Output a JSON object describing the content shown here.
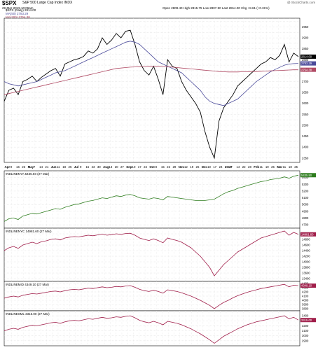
{
  "header": {
    "symbol": "$SPX",
    "name": "S&P 500 Large Cap Index INDX",
    "date": "29-Mar-2019 10:06am",
    "quote": "Open 2809.40  High 2815.75  Low 2807.90  Last 2814.00  Chg +8.61 (+0.31%)",
    "watermark": "@ StockCharts.com",
    "legend": [
      {
        "label": "$SPX (Daily) 2814.00",
        "color": "#000000"
      },
      {
        "label": "MA(50) 2783.29",
        "color": "#4b4b9a"
      },
      {
        "label": "MA(200) 2754.38",
        "color": "#b04a64"
      }
    ]
  },
  "chart_data": [
    {
      "type": "line",
      "panel": "price",
      "series": [
        {
          "name": "$SPX (Daily) 2814.00",
          "color": "#000000",
          "last_label": "2814.00",
          "values": [
            2610,
            2660,
            2670,
            2640,
            2700,
            2710,
            2725,
            2700,
            2720,
            2735,
            2750,
            2760,
            2725,
            2780,
            2790,
            2800,
            2805,
            2815,
            2840,
            2830,
            2850,
            2900,
            2870,
            2890,
            2920,
            2900,
            2930,
            2935,
            2870,
            2790,
            2750,
            2730,
            2770,
            2710,
            2640,
            2800,
            2770,
            2760,
            2700,
            2660,
            2630,
            2600,
            2560,
            2470,
            2400,
            2350,
            2520,
            2580,
            2610,
            2640,
            2680,
            2700,
            2720,
            2740,
            2760,
            2780,
            2790,
            2810,
            2800,
            2820,
            2870,
            2790,
            2830,
            2814
          ]
        },
        {
          "name": "MA(50) 2783.29",
          "color": "#4b4b9a",
          "last_label": "2783.29",
          "values": [
            2700,
            2690,
            2685,
            2680,
            2685,
            2690,
            2695,
            2700,
            2710,
            2720,
            2730,
            2740,
            2745,
            2750,
            2760,
            2770,
            2780,
            2790,
            2800,
            2810,
            2820,
            2830,
            2840,
            2850,
            2860,
            2870,
            2880,
            2885,
            2880,
            2870,
            2850,
            2830,
            2810,
            2790,
            2780,
            2770,
            2760,
            2750,
            2740,
            2720,
            2700,
            2680,
            2660,
            2630,
            2610,
            2600,
            2595,
            2590,
            2600,
            2610,
            2620,
            2640,
            2660,
            2680,
            2700,
            2715,
            2730,
            2745,
            2755,
            2765,
            2775,
            2780,
            2782,
            2783
          ]
        },
        {
          "name": "MA(200) 2754.38",
          "color": "#b04a64",
          "last_label": "2754.38",
          "values": [
            2640,
            2645,
            2650,
            2655,
            2660,
            2665,
            2670,
            2675,
            2680,
            2685,
            2690,
            2695,
            2700,
            2705,
            2710,
            2715,
            2720,
            2725,
            2730,
            2735,
            2740,
            2745,
            2750,
            2755,
            2760,
            2762,
            2764,
            2766,
            2767,
            2768,
            2769,
            2770,
            2770,
            2770,
            2769,
            2768,
            2766,
            2764,
            2762,
            2760,
            2758,
            2756,
            2754,
            2752,
            2750,
            2748,
            2746,
            2745,
            2744,
            2744,
            2744,
            2745,
            2745,
            2746,
            2746,
            2747,
            2748,
            2749,
            2750,
            2751,
            2752,
            2753,
            2754,
            2754
          ]
        }
      ],
      "ylim": [
        2330,
        2990
      ],
      "yticks": [
        2350,
        2375,
        2400,
        2425,
        2450,
        2475,
        2500,
        2525,
        2550,
        2575,
        2600,
        2625,
        2650,
        2675,
        2700,
        2725,
        2750,
        2775,
        2800,
        2825,
        2850,
        2875,
        2900,
        2925,
        2950,
        2975
      ],
      "ytick_labels": [
        "2350",
        "2375",
        "2400",
        "2425",
        "2450",
        "2475",
        "2500",
        "2525",
        "2550",
        "2575",
        "2600",
        "2625",
        "2650",
        "2675",
        "2700",
        "2725",
        "2750",
        "2775",
        "2800",
        "2825",
        "2850",
        "2875",
        "2900",
        "2925",
        "2950",
        "2975"
      ],
      "grid": true
    },
    {
      "type": "line",
      "panel": "indicator",
      "label": "!NDLINENYA 5435.50 (27 Mar)",
      "series": [
        {
          "name": "!NDLINENYA",
          "color": "#2e7d1e",
          "last_label": "5435.50",
          "values": [
            4750,
            4790,
            4800,
            4780,
            4830,
            4850,
            4870,
            4860,
            4880,
            4900,
            4920,
            4940,
            4930,
            4960,
            4980,
            5000,
            5010,
            5030,
            5050,
            5060,
            5080,
            5100,
            5090,
            5110,
            5130,
            5120,
            5140,
            5150,
            5130,
            5100,
            5090,
            5080,
            5100,
            5090,
            5070,
            5120,
            5110,
            5100,
            5090,
            5080,
            5070,
            5060,
            5060,
            5060,
            5070,
            5080,
            5120,
            5160,
            5190,
            5210,
            5240,
            5260,
            5280,
            5300,
            5320,
            5340,
            5350,
            5370,
            5380,
            5390,
            5410,
            5390,
            5420,
            5435
          ]
        }
      ],
      "ylim": [
        4650,
        5500
      ],
      "yticks": [
        4700,
        4800,
        4900,
        5000,
        5100,
        5200,
        5300,
        5400
      ],
      "ytick_labels": [
        "4700",
        "4800",
        "4900",
        "5000",
        "5100",
        "5200",
        "5300",
        "5400"
      ],
      "grid": true
    },
    {
      "type": "line",
      "panel": "indicator",
      "label": "!NDLINENYC 14981.60 (27 Mar)",
      "series": [
        {
          "name": "!NDLINENYC",
          "color": "#a01e4a",
          "last_label": "14981.60",
          "values": [
            14400,
            14500,
            14550,
            14480,
            14600,
            14650,
            14700,
            14650,
            14720,
            14750,
            14800,
            14820,
            14780,
            14850,
            14880,
            14900,
            14890,
            14920,
            14950,
            14930,
            14960,
            14990,
            14950,
            14970,
            15000,
            14980,
            15010,
            15020,
            14950,
            14850,
            14800,
            14760,
            14820,
            14760,
            14680,
            14850,
            14800,
            14760,
            14700,
            14600,
            14500,
            14350,
            14200,
            14000,
            13800,
            13500,
            13700,
            13900,
            14050,
            14200,
            14350,
            14450,
            14550,
            14650,
            14750,
            14850,
            14900,
            14950,
            15000,
            15050,
            15100,
            14950,
            15050,
            14981
          ]
        }
      ],
      "ylim": [
        13300,
        15200
      ],
      "yticks": [
        13400,
        13600,
        13800,
        14000,
        14200,
        14400,
        14600,
        14800,
        15000
      ],
      "ytick_labels": [
        "13400",
        "13600",
        "13800",
        "14000",
        "14200",
        "14400",
        "14600",
        "14800",
        "15000"
      ],
      "grid": true
    },
    {
      "type": "line",
      "panel": "indicator",
      "label": "!NDLINEMID 4349.10 (27 Mar)",
      "series": [
        {
          "name": "!NDLINEMID",
          "color": "#a01e4a",
          "last_label": "4349.10",
          "values": [
            4050,
            4080,
            4100,
            4080,
            4120,
            4140,
            4160,
            4150,
            4170,
            4190,
            4210,
            4220,
            4200,
            4230,
            4250,
            4260,
            4250,
            4270,
            4290,
            4280,
            4300,
            4320,
            4300,
            4310,
            4330,
            4320,
            4340,
            4350,
            4310,
            4260,
            4230,
            4210,
            4240,
            4210,
            4170,
            4250,
            4230,
            4210,
            4180,
            4140,
            4100,
            4050,
            4000,
            3940,
            3880,
            3800,
            3880,
            3950,
            4000,
            4060,
            4110,
            4150,
            4190,
            4220,
            4250,
            4280,
            4300,
            4320,
            4340,
            4360,
            4380,
            4320,
            4360,
            4349
          ]
        }
      ],
      "ylim": [
        3750,
        4450
      ],
      "yticks": [
        3800,
        3900,
        4000,
        4100,
        4200,
        4300,
        4400
      ],
      "ytick_labels": [
        "3800",
        "3900",
        "4000",
        "4100",
        "4200",
        "4300",
        "4400"
      ],
      "grid": true
    },
    {
      "type": "line",
      "panel": "indicator",
      "label": "!NDLINESML 3315.00 (27 Mar)",
      "series": [
        {
          "name": "!NDLINESML",
          "color": "#a01e4a",
          "last_label": "3315.00",
          "values": [
            3100,
            3130,
            3150,
            3130,
            3170,
            3190,
            3210,
            3200,
            3220,
            3240,
            3260,
            3270,
            3250,
            3280,
            3300,
            3310,
            3300,
            3320,
            3340,
            3330,
            3350,
            3370,
            3350,
            3360,
            3380,
            3370,
            3390,
            3400,
            3360,
            3310,
            3280,
            3260,
            3290,
            3260,
            3220,
            3290,
            3270,
            3250,
            3220,
            3180,
            3140,
            3090,
            3040,
            2980,
            2920,
            2850,
            2920,
            2990,
            3040,
            3090,
            3140,
            3180,
            3220,
            3250,
            3280,
            3300,
            3320,
            3340,
            3360,
            3380,
            3400,
            3340,
            3370,
            3315
          ]
        }
      ],
      "ylim": [
        2800,
        3500
      ],
      "yticks": [
        2900,
        3000,
        3100,
        3200,
        3300,
        3400
      ],
      "ytick_labels": [
        "2900",
        "3000",
        "3100",
        "3200",
        "3300",
        "3400"
      ],
      "grid": true
    }
  ],
  "x_axis": {
    "tick_labels": [
      "Apr",
      "9",
      "16",
      "23",
      "May",
      "7",
      "14",
      "21",
      "Jun",
      "11",
      "18",
      "25",
      "Jul",
      "9",
      "16",
      "23",
      "30",
      "Aug",
      "13",
      "20",
      "27",
      "Sep",
      "10",
      "17",
      "24",
      "Oct",
      "8",
      "15",
      "22",
      "29",
      "Nov",
      "12",
      "19",
      "26",
      "Dec",
      "10",
      "17",
      "24",
      "2019",
      "7",
      "14",
      "22",
      "28",
      "Feb",
      "11",
      "19",
      "25",
      "Mar",
      "11",
      "18",
      "25"
    ]
  }
}
